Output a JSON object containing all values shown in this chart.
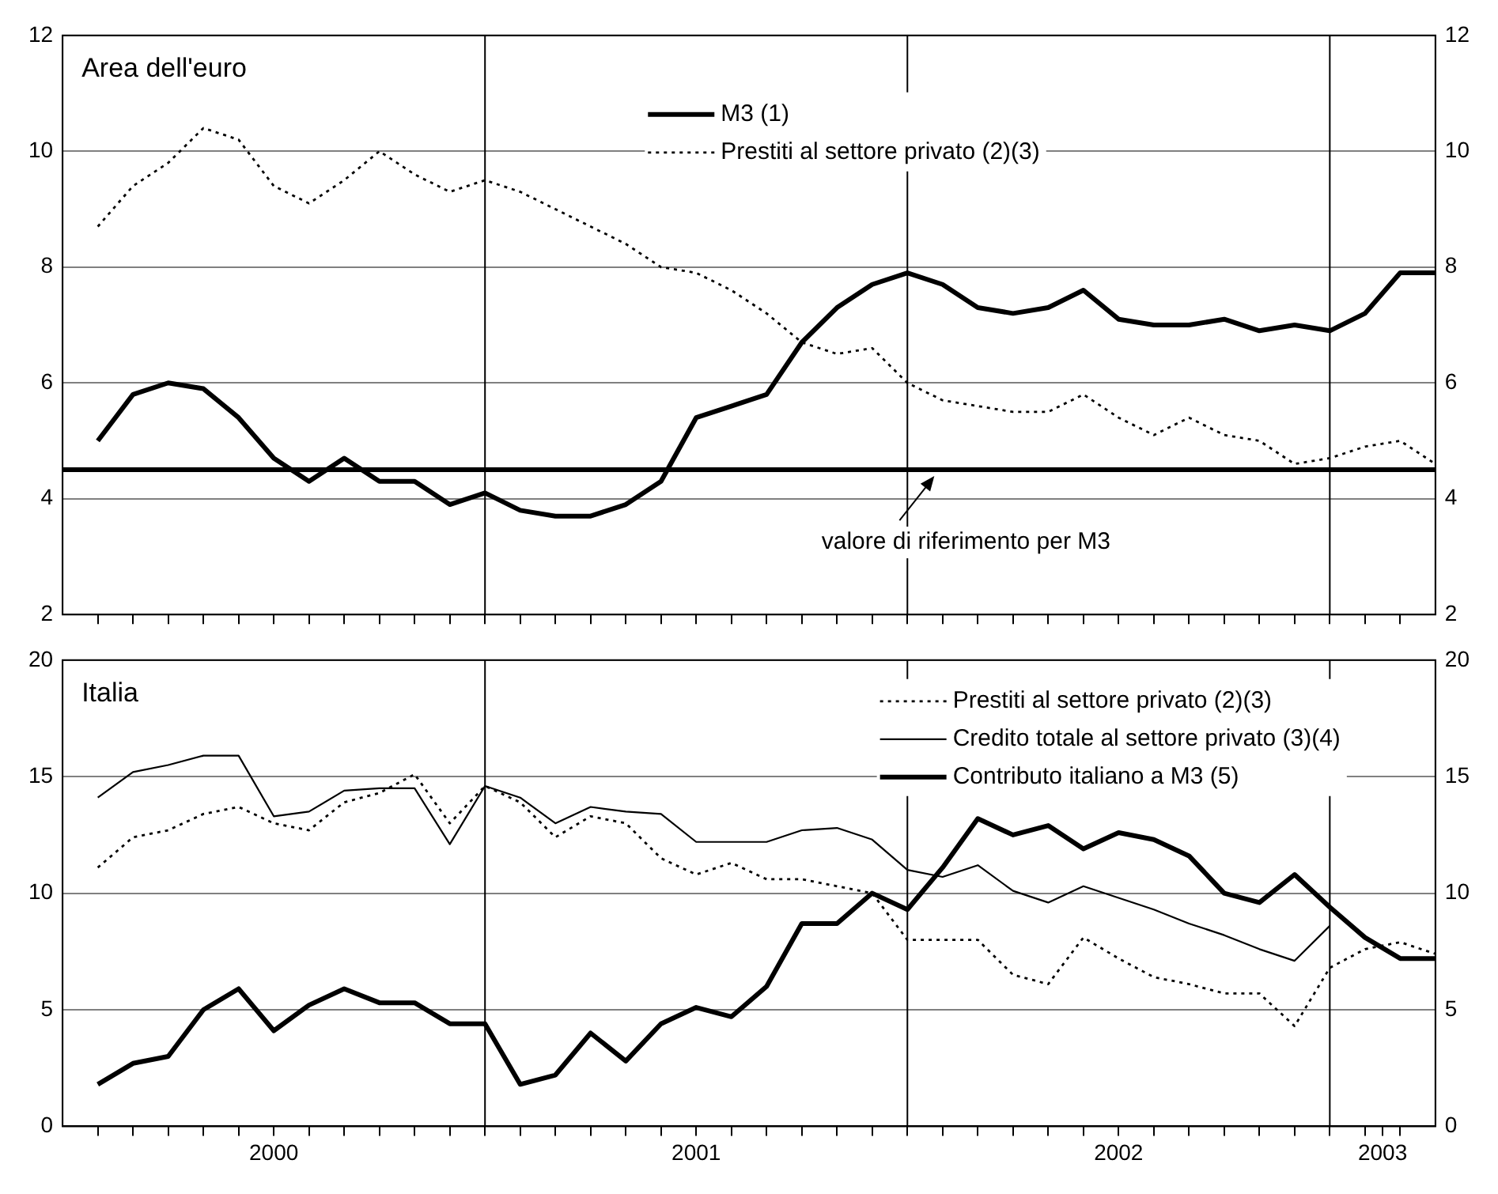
{
  "chart_data": [
    {
      "type": "line",
      "title": "Area dell'euro",
      "x": [
        "2000-01",
        "2000-02",
        "2000-03",
        "2000-04",
        "2000-05",
        "2000-06",
        "2000-07",
        "2000-08",
        "2000-09",
        "2000-10",
        "2000-11",
        "2000-12",
        "2001-01",
        "2001-02",
        "2001-03",
        "2001-04",
        "2001-05",
        "2001-06",
        "2001-07",
        "2001-08",
        "2001-09",
        "2001-10",
        "2001-11",
        "2001-12",
        "2002-01",
        "2002-02",
        "2002-03",
        "2002-04",
        "2002-05",
        "2002-06",
        "2002-07",
        "2002-08",
        "2002-09",
        "2002-10",
        "2002-11",
        "2002-12",
        "2003-01",
        "2003-02",
        "2003-03"
      ],
      "xlim": [
        "1999-12",
        "2003-03"
      ],
      "xticks": [
        {
          "value": "2000-01",
          "label": null
        },
        {
          "value": "2000-02",
          "label": null
        },
        {
          "value": "2000-03",
          "label": null
        },
        {
          "value": "2000-04",
          "label": null
        },
        {
          "value": "2000-05",
          "label": null
        },
        {
          "value": "2000-06",
          "label": null
        },
        {
          "value": "2000-07",
          "label": null
        },
        {
          "value": "2000-08",
          "label": null
        },
        {
          "value": "2000-09",
          "label": null
        },
        {
          "value": "2000-10",
          "label": null
        },
        {
          "value": "2000-11",
          "label": null
        },
        {
          "value": "2000-12",
          "label": null
        },
        {
          "value": "2001-01",
          "label": null
        },
        {
          "value": "2001-02",
          "label": null
        },
        {
          "value": "2001-03",
          "label": null
        },
        {
          "value": "2001-04",
          "label": null
        },
        {
          "value": "2001-05",
          "label": null
        },
        {
          "value": "2001-06",
          "label": null
        },
        {
          "value": "2001-07",
          "label": null
        },
        {
          "value": "2001-08",
          "label": null
        },
        {
          "value": "2001-09",
          "label": null
        },
        {
          "value": "2001-10",
          "label": null
        },
        {
          "value": "2001-11",
          "label": null
        },
        {
          "value": "2001-12",
          "label": null
        },
        {
          "value": "2002-01",
          "label": null
        },
        {
          "value": "2002-02",
          "label": null
        },
        {
          "value": "2002-03",
          "label": null
        },
        {
          "value": "2002-04",
          "label": null
        },
        {
          "value": "2002-05",
          "label": null
        },
        {
          "value": "2002-06",
          "label": null
        },
        {
          "value": "2002-07",
          "label": null
        },
        {
          "value": "2002-08",
          "label": null
        },
        {
          "value": "2002-09",
          "label": null
        },
        {
          "value": "2002-10",
          "label": null
        },
        {
          "value": "2002-11",
          "label": null
        },
        {
          "value": "2002-12",
          "label": null
        },
        {
          "value": "2003-01",
          "label": null
        },
        {
          "value": "2003-02",
          "label": null
        }
      ],
      "ylim": [
        2,
        12
      ],
      "yticks": [
        2,
        4,
        6,
        8,
        10,
        12
      ],
      "y2lim": [
        2,
        12
      ],
      "y2ticks": [
        2,
        4,
        6,
        8,
        10,
        12
      ],
      "grid": "y",
      "legend": "top",
      "tick_labels": "y",
      "marker": "none",
      "series": [
        {
          "name": "M3 (1)",
          "color": "#000000",
          "line_style": "solid",
          "values": [
            5.0,
            5.8,
            6.0,
            5.9,
            5.4,
            4.7,
            4.3,
            4.7,
            4.3,
            4.3,
            3.9,
            4.1,
            3.8,
            3.7,
            3.7,
            3.9,
            4.3,
            5.4,
            5.6,
            5.8,
            6.7,
            7.3,
            7.7,
            7.9,
            7.7,
            7.3,
            7.2,
            7.3,
            7.6,
            7.1,
            7.0,
            7.0,
            7.1,
            6.9,
            7.0,
            6.9,
            7.2,
            7.9,
            7.9
          ]
        },
        {
          "name": "Prestiti al settore privato (2)(3)",
          "color": "#000000",
          "line_style": "dotted",
          "values": [
            8.7,
            9.4,
            9.8,
            10.4,
            10.2,
            9.4,
            9.1,
            9.5,
            10.0,
            9.6,
            9.3,
            9.5,
            9.3,
            9.0,
            8.7,
            8.4,
            8.0,
            7.9,
            7.6,
            7.2,
            6.7,
            6.5,
            6.6,
            6.0,
            5.7,
            5.6,
            5.5,
            5.5,
            5.8,
            5.4,
            5.1,
            5.4,
            5.1,
            5.0,
            4.6,
            4.7,
            4.9,
            5.0,
            4.6
          ]
        }
      ],
      "ref_lines": [
        {
          "axis": "y",
          "value": 4.5,
          "color": "#000000",
          "label": "valore di riferimento per M3"
        },
        {
          "axis": "x",
          "value": "2000-12",
          "color": "#000000"
        },
        {
          "axis": "x",
          "value": "2001-12",
          "color": "#000000"
        },
        {
          "axis": "x",
          "value": "2002-12",
          "color": "#000000"
        }
      ]
    },
    {
      "type": "line",
      "title": "Italia",
      "x": [
        "2000-01",
        "2000-02",
        "2000-03",
        "2000-04",
        "2000-05",
        "2000-06",
        "2000-07",
        "2000-08",
        "2000-09",
        "2000-10",
        "2000-11",
        "2000-12",
        "2001-01",
        "2001-02",
        "2001-03",
        "2001-04",
        "2001-05",
        "2001-06",
        "2001-07",
        "2001-08",
        "2001-09",
        "2001-10",
        "2001-11",
        "2001-12",
        "2002-01",
        "2002-02",
        "2002-03",
        "2002-04",
        "2002-05",
        "2002-06",
        "2002-07",
        "2002-08",
        "2002-09",
        "2002-10",
        "2002-11",
        "2002-12",
        "2003-01",
        "2003-02",
        "2003-03"
      ],
      "xlim": [
        "1999-12",
        "2003-03"
      ],
      "xticks": [
        {
          "value": "2000-01",
          "label": null
        },
        {
          "value": "2000-02",
          "label": null
        },
        {
          "value": "2000-03",
          "label": null
        },
        {
          "value": "2000-04",
          "label": null
        },
        {
          "value": "2000-05",
          "label": null
        },
        {
          "value": "2000-06",
          "label": "2000"
        },
        {
          "value": "2000-07",
          "label": null
        },
        {
          "value": "2000-08",
          "label": null
        },
        {
          "value": "2000-09",
          "label": null
        },
        {
          "value": "2000-10",
          "label": null
        },
        {
          "value": "2000-11",
          "label": null
        },
        {
          "value": "2000-12",
          "label": null
        },
        {
          "value": "2001-01",
          "label": null
        },
        {
          "value": "2001-02",
          "label": null
        },
        {
          "value": "2001-03",
          "label": null
        },
        {
          "value": "2001-04",
          "label": null
        },
        {
          "value": "2001-05",
          "label": null
        },
        {
          "value": "2001-06",
          "label": "2001"
        },
        {
          "value": "2001-07",
          "label": null
        },
        {
          "value": "2001-08",
          "label": null
        },
        {
          "value": "2001-09",
          "label": null
        },
        {
          "value": "2001-10",
          "label": null
        },
        {
          "value": "2001-11",
          "label": null
        },
        {
          "value": "2001-12",
          "label": null
        },
        {
          "value": "2002-01",
          "label": null
        },
        {
          "value": "2002-02",
          "label": null
        },
        {
          "value": "2002-03",
          "label": null
        },
        {
          "value": "2002-04",
          "label": null
        },
        {
          "value": "2002-05",
          "label": null
        },
        {
          "value": "2002-06",
          "label": "2002"
        },
        {
          "value": "2002-07",
          "label": null
        },
        {
          "value": "2002-08",
          "label": null
        },
        {
          "value": "2002-09",
          "label": null
        },
        {
          "value": "2002-10",
          "label": null
        },
        {
          "value": "2002-11",
          "label": null
        },
        {
          "value": "2002-12",
          "label": null
        },
        {
          "value": "2003-01",
          "label": null
        },
        {
          "value": "2003-01-16",
          "label": "2003"
        },
        {
          "value": "2003-02",
          "label": null
        }
      ],
      "ylim": [
        0,
        20
      ],
      "yticks": [
        0,
        5,
        10,
        15,
        20
      ],
      "y2lim": [
        0,
        20
      ],
      "y2ticks": [
        0,
        5,
        10,
        15,
        20
      ],
      "grid": "y",
      "legend": "top right",
      "marker": "none",
      "series": [
        {
          "name": "Prestiti al settore privato (2)(3)",
          "color": "#000000",
          "line_style": "dotted",
          "values": [
            11.1,
            12.4,
            12.7,
            13.4,
            13.7,
            13.0,
            12.7,
            13.9,
            14.3,
            15.1,
            13.0,
            14.6,
            13.9,
            12.4,
            13.3,
            13.0,
            11.5,
            10.8,
            11.3,
            10.6,
            10.6,
            10.3,
            10.0,
            8.0,
            8.0,
            8.0,
            6.5,
            6.1,
            8.1,
            7.2,
            6.4,
            6.1,
            5.7,
            5.7,
            4.3,
            6.8,
            7.6,
            7.9,
            7.4
          ]
        },
        {
          "name": "Credito totale al settore privato (3)(4)",
          "color": "#000000",
          "line_style": "solid",
          "values": [
            14.1,
            15.2,
            15.5,
            15.9,
            15.9,
            13.3,
            13.5,
            14.4,
            14.5,
            14.5,
            12.1,
            14.6,
            14.1,
            13.0,
            13.7,
            13.5,
            13.4,
            12.2,
            12.2,
            12.2,
            12.7,
            12.8,
            12.3,
            11.0,
            10.7,
            11.2,
            10.1,
            9.6,
            10.3,
            9.8,
            9.3,
            8.7,
            8.2,
            7.6,
            7.1,
            8.6,
            null,
            null,
            null
          ]
        },
        {
          "name": "Contributo italiano a M3 (5)",
          "color": "#000000",
          "line_style": "solid",
          "values": [
            1.8,
            2.7,
            3.0,
            5.0,
            5.9,
            4.1,
            5.2,
            5.9,
            5.3,
            5.3,
            4.4,
            4.4,
            1.8,
            2.2,
            4.0,
            2.8,
            4.4,
            5.1,
            4.7,
            6.0,
            8.7,
            8.7,
            10.0,
            9.3,
            11.1,
            13.2,
            12.5,
            12.9,
            11.9,
            12.6,
            12.3,
            11.6,
            10.0,
            9.6,
            10.8,
            9.4,
            8.1,
            7.2,
            7.2
          ]
        }
      ],
      "ref_lines": [
        {
          "axis": "x",
          "value": "2000-12",
          "color": "#000000"
        },
        {
          "axis": "x",
          "value": "2001-12",
          "color": "#000000"
        },
        {
          "axis": "x",
          "value": "2002-12",
          "color": "#000000"
        }
      ]
    }
  ]
}
